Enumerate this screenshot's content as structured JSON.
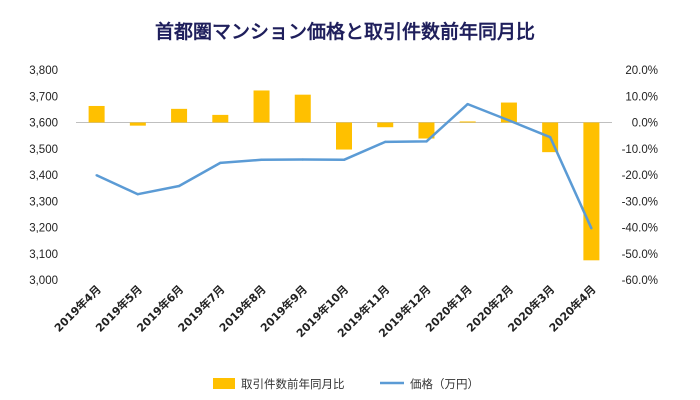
{
  "chart_data": {
    "type": "bar+line",
    "title": "首都圏マンション価格と取引件数前年同月比",
    "categories": [
      "2019年4月",
      "2019年5月",
      "2019年6月",
      "2019年7月",
      "2019年8月",
      "2019年9月",
      "2019年10月",
      "2019年11月",
      "2019年12月",
      "2020年1月",
      "2020年2月",
      "2020年3月",
      "2020年4月"
    ],
    "series": [
      {
        "name": "取引件数前年同月比",
        "type": "bar",
        "axis": "right",
        "values": [
          6.3,
          -1.2,
          5.2,
          2.9,
          12.2,
          10.6,
          -10.3,
          -1.8,
          -6.1,
          0.4,
          7.6,
          -11.3,
          -52.5
        ]
      },
      {
        "name": "価格（万円）",
        "type": "line",
        "axis": "left",
        "values": [
          3399,
          3327,
          3358,
          3446,
          3458,
          3459,
          3458,
          3526,
          3528,
          3670,
          3608,
          3544,
          3197
        ]
      }
    ],
    "y_left": {
      "ylim": [
        3000,
        3800
      ],
      "step": 100,
      "tick_labels": [
        "3,000",
        "3,100",
        "3,200",
        "3,300",
        "3,400",
        "3,500",
        "3,600",
        "3,700",
        "3,800"
      ]
    },
    "y_right": {
      "ylim": [
        -60,
        20
      ],
      "step": 10,
      "tick_labels": [
        "-60.0%",
        "-50.0%",
        "-40.0%",
        "-30.0%",
        "-20.0%",
        "-10.0%",
        "0.0%",
        "10.0%",
        "20.0%"
      ]
    },
    "grid": false,
    "legend_position": "bottom",
    "colors": {
      "bar": "#ffc000",
      "line": "#5b9bd5",
      "axis": "#bfbfbf"
    }
  }
}
